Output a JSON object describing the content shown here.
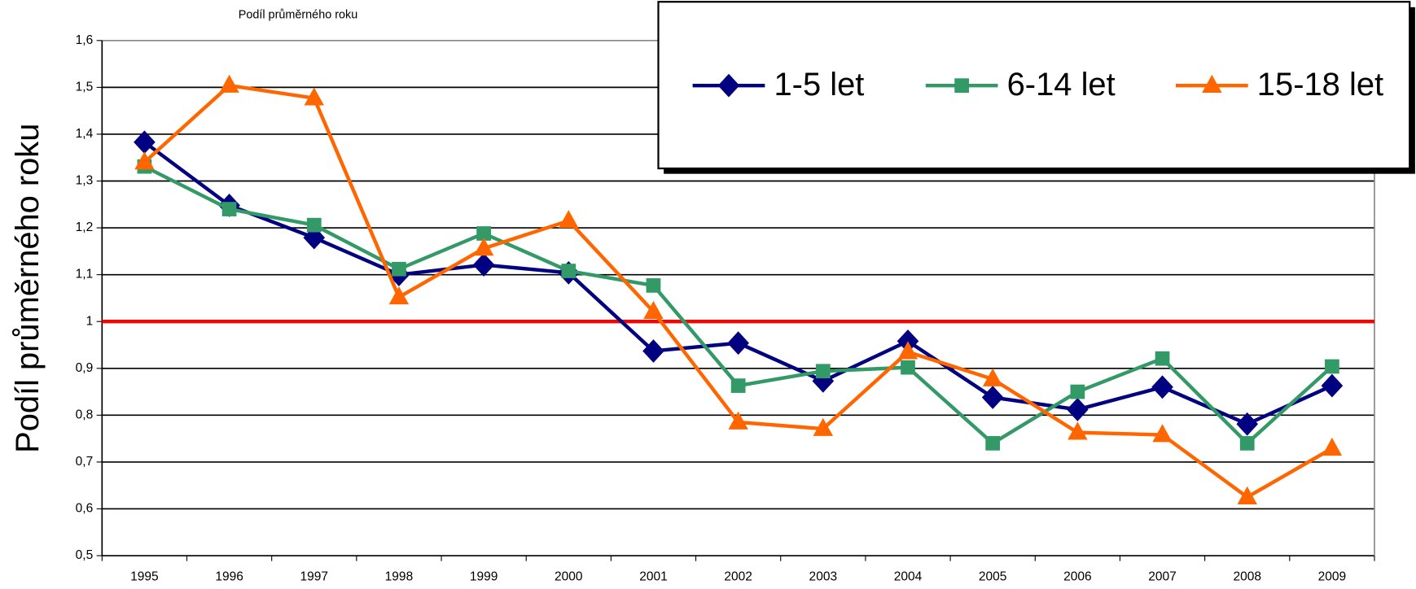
{
  "chart_data": {
    "type": "line",
    "title": "Podíl průměrného roku",
    "y_label": "Podíl průměrného roku",
    "categories": [
      "1995",
      "1996",
      "1997",
      "1998",
      "1999",
      "2000",
      "2001",
      "2002",
      "2003",
      "2004",
      "2005",
      "2006",
      "2007",
      "2008",
      "2009"
    ],
    "series": [
      {
        "name": "1-5 let",
        "color": "#000080",
        "marker": "diamond",
        "values": [
          1.383,
          1.248,
          1.179,
          1.1,
          1.121,
          1.104,
          0.937,
          0.954,
          0.873,
          0.958,
          0.838,
          0.812,
          0.86,
          0.781,
          0.863
        ]
      },
      {
        "name": "6-14 let",
        "color": "#339966",
        "marker": "square",
        "values": [
          1.331,
          1.24,
          1.206,
          1.112,
          1.188,
          1.108,
          1.077,
          0.863,
          0.894,
          0.902,
          0.74,
          0.85,
          0.921,
          0.74,
          0.904
        ]
      },
      {
        "name": "15-18 let",
        "color": "#ff6600",
        "marker": "triangle",
        "values": [
          1.34,
          1.504,
          1.477,
          1.052,
          1.156,
          1.215,
          1.021,
          0.785,
          0.771,
          0.935,
          0.877,
          0.763,
          0.758,
          0.625,
          0.729
        ]
      }
    ],
    "reference_line": {
      "value": 1,
      "color": "#ff0000"
    },
    "ylim": [
      0.5,
      1.6
    ],
    "yticks": [
      {
        "value": 0.5,
        "label": "0,5"
      },
      {
        "value": 0.6,
        "label": "0,6"
      },
      {
        "value": 0.7,
        "label": "0,7"
      },
      {
        "value": 0.8,
        "label": "0,8"
      },
      {
        "value": 0.9,
        "label": "0,9"
      },
      1,
      {
        "value": 1.1,
        "label": "1,1"
      },
      {
        "value": 1.2,
        "label": "1,2"
      },
      {
        "value": 1.3,
        "label": "1,3"
      },
      {
        "value": 1.4,
        "label": "1,4"
      },
      {
        "value": 1.5,
        "label": "1,5"
      },
      {
        "value": 1.6,
        "label": "1,6"
      }
    ],
    "grid": true,
    "legend": "top-right"
  }
}
